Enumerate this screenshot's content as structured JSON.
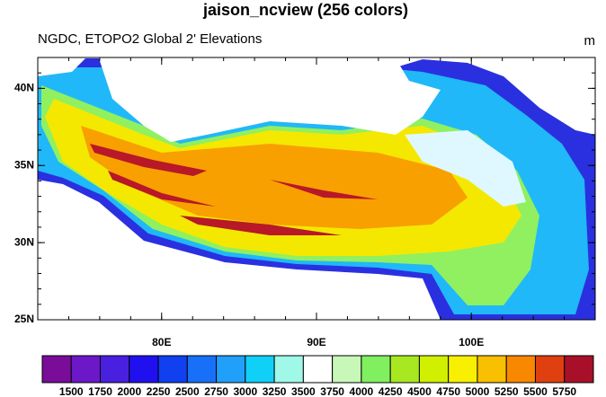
{
  "title": "jaison_ncview (256 colors)",
  "subtitle": "NGDC, ETOPO2 Global 2' Elevations",
  "units": "m",
  "map": {
    "xlim": [
      72,
      108
    ],
    "ylim": [
      25,
      42
    ],
    "xticks": [
      {
        "value": 80,
        "label": "80E"
      },
      {
        "value": 90,
        "label": "90E"
      },
      {
        "value": 100,
        "label": "100E"
      }
    ],
    "yticks": [
      {
        "value": 25,
        "label": "25N"
      },
      {
        "value": 30,
        "label": "30N"
      },
      {
        "value": 35,
        "label": "35N"
      },
      {
        "value": 40,
        "label": "40N"
      }
    ]
  },
  "colorbar": {
    "levels": [
      1500,
      1750,
      2000,
      2250,
      2500,
      2750,
      3000,
      3250,
      3500,
      3750,
      4000,
      4250,
      4500,
      4750,
      5000,
      5250,
      5500,
      5750
    ],
    "colors": [
      "#7a0c9a",
      "#6c18c8",
      "#4a20e0",
      "#2010f0",
      "#1040f0",
      "#1870f8",
      "#20a0f8",
      "#10d0f8",
      "#a0f8e8",
      "#ffffff",
      "#c8f8b8",
      "#80f060",
      "#a8e820",
      "#d0f000",
      "#f8f000",
      "#f8c000",
      "#f88800",
      "#e04010",
      "#a8102a"
    ]
  }
}
